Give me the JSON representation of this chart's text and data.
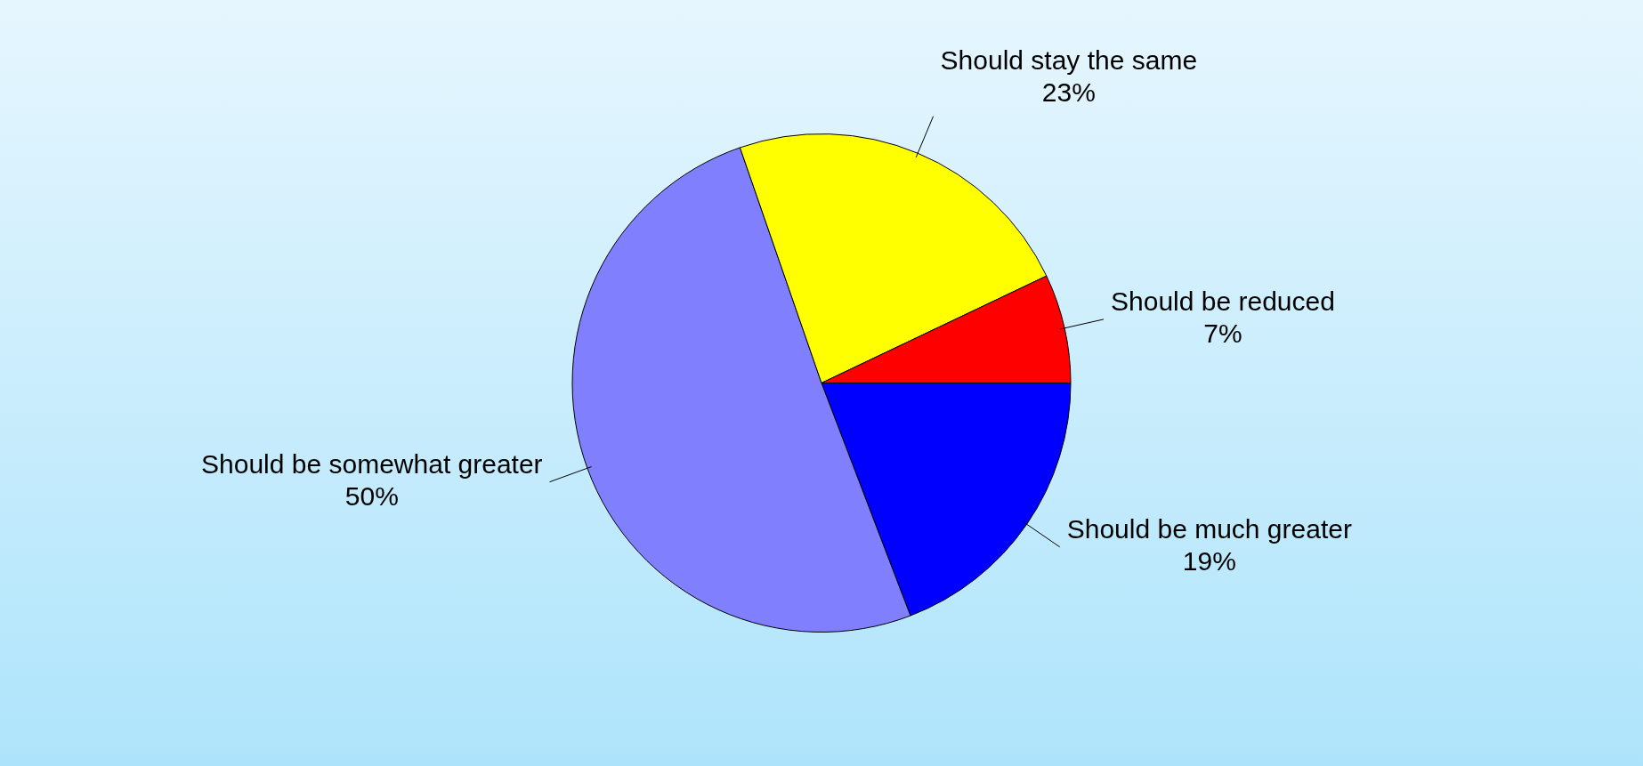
{
  "chart_data": {
    "type": "pie",
    "categories": [
      "Should be much greater",
      "Should be somewhat greater",
      "Should stay the same",
      "Should be reduced"
    ],
    "values": [
      19,
      50,
      23,
      7
    ],
    "colors": [
      "#0000ff",
      "#8080ff",
      "#ffff00",
      "#ff0000"
    ],
    "value_labels": [
      "19%",
      "50%",
      "23%",
      "7%"
    ],
    "legend": false
  }
}
